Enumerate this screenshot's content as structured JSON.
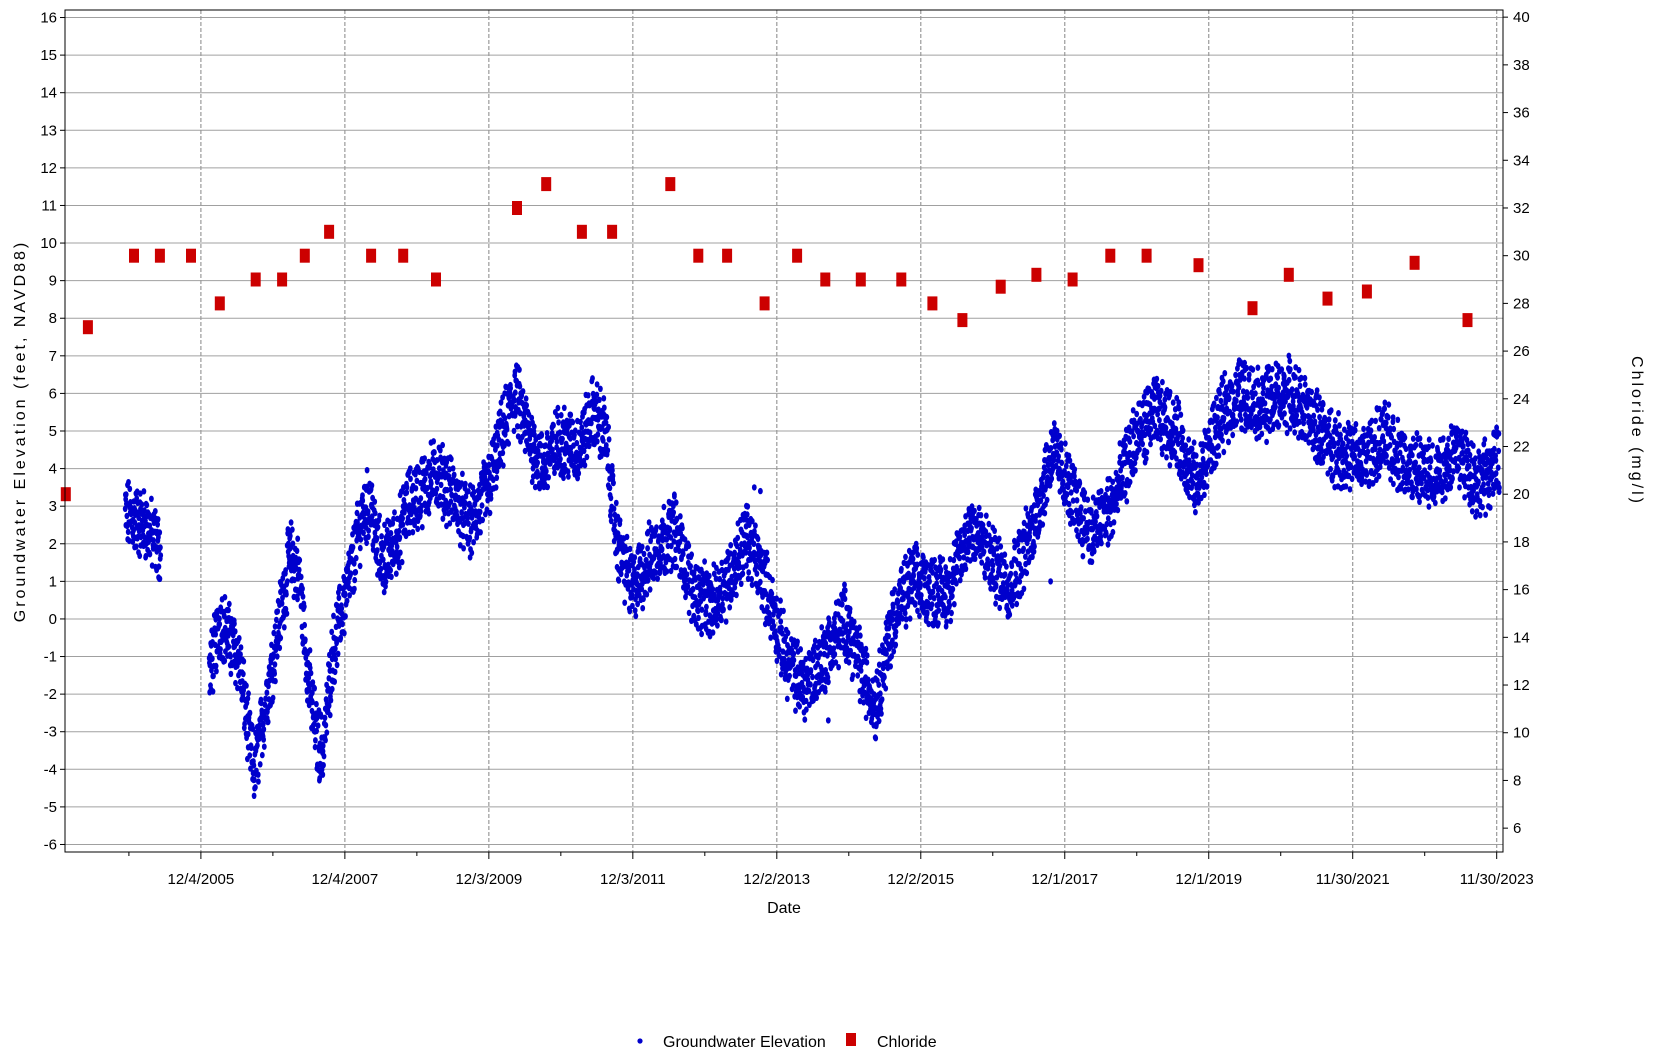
{
  "chart_data": {
    "type": "scatter",
    "title": "",
    "xlabel": "Date",
    "ylabel_left": "Groundwater Elevation (feet, NAVD88)",
    "ylabel_right": "Chloride (mg/l)",
    "x_ticks": [
      "12/4/2005",
      "12/4/2007",
      "12/3/2009",
      "12/3/2011",
      "12/2/2013",
      "12/2/2015",
      "12/1/2017",
      "12/1/2019",
      "11/30/2021",
      "11/30/2023"
    ],
    "xlim": [
      "2004-01-15",
      "2024-01-01"
    ],
    "ylim_left": [
      -6.2,
      16.2
    ],
    "ylim_right": [
      5,
      40.3
    ],
    "y_ticks_left": [
      -6,
      -5,
      -4,
      -3,
      -2,
      -1,
      0,
      1,
      2,
      3,
      4,
      5,
      6,
      7,
      8,
      9,
      10,
      11,
      12,
      13,
      14,
      15,
      16
    ],
    "y_ticks_right": [
      6,
      8,
      10,
      12,
      14,
      16,
      18,
      20,
      22,
      24,
      26,
      28,
      30,
      32,
      34,
      36,
      38,
      40
    ],
    "grid": true,
    "legend_position": "bottom",
    "series": [
      {
        "name": "Groundwater Elevation",
        "axis": "left",
        "color": "#0000cc",
        "marker": "circle",
        "note_sampling": "continuous daily-scale record; trend points below",
        "points": [
          [
            "2004-11-15",
            2.8
          ],
          [
            "2005-01-15",
            2.6
          ],
          [
            "2005-03-01",
            2.5
          ],
          [
            "2005-05-15",
            1.8
          ],
          [
            "2006-01-15",
            -1.5
          ],
          [
            "2006-03-15",
            0.0
          ],
          [
            "2006-05-01",
            -0.6
          ],
          [
            "2006-06-15",
            -1.0
          ],
          [
            "2006-08-01",
            -3.0
          ],
          [
            "2006-09-01",
            -4.1
          ],
          [
            "2007-03-01",
            1.7
          ],
          [
            "2007-04-15",
            1.2
          ],
          [
            "2007-06-01",
            -1.5
          ],
          [
            "2007-07-15",
            -3.2
          ],
          [
            "2007-08-15",
            -3.5
          ],
          [
            "2007-10-01",
            -1.0
          ],
          [
            "2007-11-01",
            -0.2
          ],
          [
            "2008-01-15",
            1.5
          ],
          [
            "2008-03-01",
            2.8
          ],
          [
            "2008-04-15",
            3.1
          ],
          [
            "2008-05-15",
            1.8
          ],
          [
            "2008-07-01",
            1.6
          ],
          [
            "2008-09-01",
            2.2
          ],
          [
            "2008-10-15",
            3.0
          ],
          [
            "2009-03-15",
            3.9
          ],
          [
            "2009-06-01",
            3.3
          ],
          [
            "2009-09-01",
            2.5
          ],
          [
            "2009-12-01",
            3.5
          ],
          [
            "2010-02-15",
            5.0
          ],
          [
            "2010-04-15",
            6.0
          ],
          [
            "2010-06-15",
            5.0
          ],
          [
            "2010-09-01",
            4.0
          ],
          [
            "2010-12-01",
            4.8
          ],
          [
            "2011-03-01",
            4.5
          ],
          [
            "2011-05-15",
            5.5
          ],
          [
            "2011-07-15",
            5.0
          ],
          [
            "2011-09-15",
            2.0
          ],
          [
            "2011-12-01",
            0.8
          ],
          [
            "2012-04-15",
            2.0
          ],
          [
            "2012-07-01",
            2.4
          ],
          [
            "2012-10-01",
            0.8
          ],
          [
            "2013-01-01",
            0.3
          ],
          [
            "2013-04-15",
            1.2
          ],
          [
            "2013-07-01",
            2.2
          ],
          [
            "2013-10-01",
            1.0
          ],
          [
            "2014-01-15",
            -1.0
          ],
          [
            "2014-04-15",
            -1.8
          ],
          [
            "2014-08-01",
            -1.0
          ],
          [
            "2014-11-15",
            0.0
          ],
          [
            "2015-02-15",
            -1.5
          ],
          [
            "2015-04-15",
            -2.3
          ],
          [
            "2015-07-15",
            0.0
          ],
          [
            "2015-10-15",
            1.0
          ],
          [
            "2016-01-15",
            0.8
          ],
          [
            "2016-04-15",
            0.7
          ],
          [
            "2016-08-15",
            2.5
          ],
          [
            "2016-12-01",
            1.5
          ],
          [
            "2017-03-01",
            0.9
          ],
          [
            "2017-06-15",
            2.3
          ],
          [
            "2017-10-01",
            4.5
          ],
          [
            "2018-01-15",
            3.2
          ],
          [
            "2018-04-15",
            2.3
          ],
          [
            "2018-08-01",
            3.0
          ],
          [
            "2018-11-15",
            4.7
          ],
          [
            "2019-03-01",
            5.5
          ],
          [
            "2019-06-15",
            5.0
          ],
          [
            "2019-10-01",
            3.5
          ],
          [
            "2020-01-15",
            5.2
          ],
          [
            "2020-05-01",
            6.0
          ],
          [
            "2020-09-01",
            5.7
          ],
          [
            "2021-01-15",
            6.0
          ],
          [
            "2021-05-15",
            5.2
          ],
          [
            "2021-09-15",
            4.5
          ],
          [
            "2022-01-15",
            4.2
          ],
          [
            "2022-05-15",
            4.8
          ],
          [
            "2022-09-15",
            4.0
          ],
          [
            "2023-01-15",
            3.8
          ],
          [
            "2023-05-15",
            4.5
          ],
          [
            "2023-09-01",
            3.6
          ],
          [
            "2023-12-15",
            4.2
          ]
        ]
      },
      {
        "name": "Chloride",
        "axis": "right",
        "color": "#cc0000",
        "marker": "square",
        "points": [
          [
            "2004-01-19",
            20
          ],
          [
            "2004-05-10",
            27
          ],
          [
            "2004-12-30",
            30
          ],
          [
            "2005-05-10",
            30
          ],
          [
            "2005-10-15",
            30
          ],
          [
            "2006-03-10",
            28
          ],
          [
            "2006-09-08",
            29
          ],
          [
            "2007-01-20",
            29
          ],
          [
            "2007-05-15",
            30
          ],
          [
            "2007-09-15",
            31
          ],
          [
            "2008-04-15",
            30
          ],
          [
            "2008-09-25",
            30
          ],
          [
            "2009-03-10",
            29
          ],
          [
            "2010-04-25",
            32
          ],
          [
            "2010-09-20",
            33
          ],
          [
            "2011-03-20",
            31
          ],
          [
            "2011-08-20",
            31
          ],
          [
            "2012-06-10",
            33
          ],
          [
            "2012-10-30",
            30
          ],
          [
            "2013-03-25",
            30
          ],
          [
            "2013-10-01",
            28
          ],
          [
            "2014-03-15",
            30
          ],
          [
            "2014-08-05",
            29
          ],
          [
            "2015-02-01",
            29
          ],
          [
            "2015-08-25",
            29
          ],
          [
            "2016-01-30",
            28
          ],
          [
            "2016-06-30",
            27.3
          ],
          [
            "2017-01-10",
            28.7
          ],
          [
            "2017-07-10",
            29.2
          ],
          [
            "2018-01-10",
            29
          ],
          [
            "2018-07-20",
            30
          ],
          [
            "2019-01-20",
            30
          ],
          [
            "2019-10-10",
            29.6
          ],
          [
            "2020-07-10",
            27.8
          ],
          [
            "2021-01-10",
            29.2
          ],
          [
            "2021-07-25",
            28.2
          ],
          [
            "2022-02-10",
            28.5
          ],
          [
            "2022-10-10",
            29.7
          ],
          [
            "2023-07-05",
            27.3
          ]
        ]
      }
    ]
  }
}
